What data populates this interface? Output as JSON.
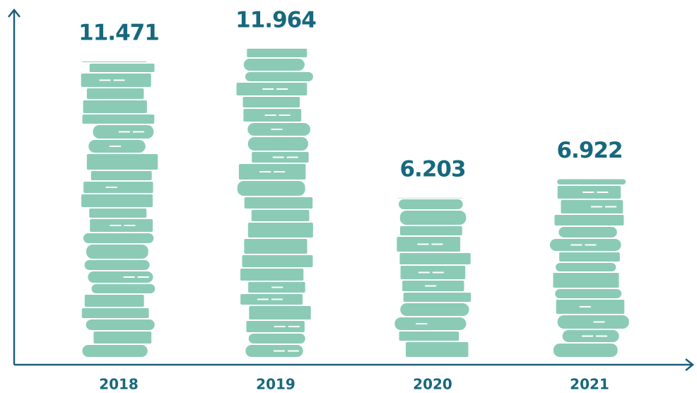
{
  "chart_data": {
    "type": "pictograph-bar",
    "categories": [
      "2018",
      "2019",
      "2020",
      "2021"
    ],
    "values": [
      11471,
      11964,
      6203,
      6922
    ],
    "value_labels": [
      "11.471",
      "11.964",
      "6.203",
      "6.922"
    ],
    "color": "#8bcbb6",
    "ylim": [
      0,
      13000
    ]
  }
}
